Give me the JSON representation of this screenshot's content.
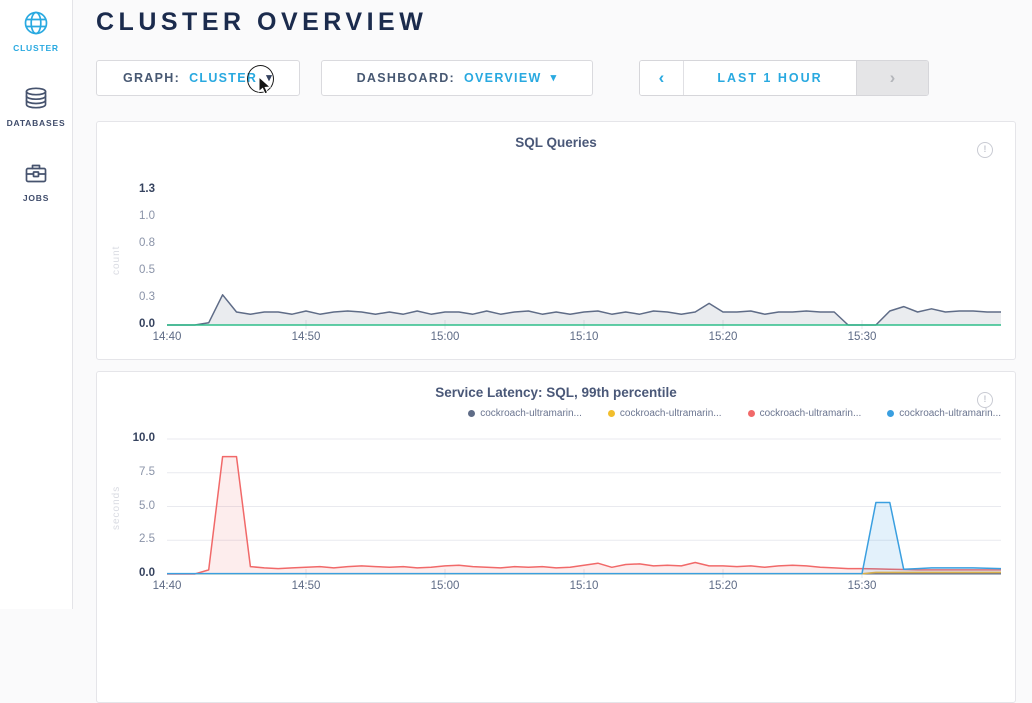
{
  "header": {
    "title": "CLUSTER OVERVIEW"
  },
  "sidebar": {
    "items": [
      {
        "label": "CLUSTER",
        "icon": "globe-icon",
        "active": true
      },
      {
        "label": "DATABASES",
        "icon": "database-icon",
        "active": false
      },
      {
        "label": "JOBS",
        "icon": "briefcase-icon",
        "active": false
      }
    ]
  },
  "toolbar": {
    "graph": {
      "label": "GRAPH:",
      "value": "CLUSTER"
    },
    "dashboard": {
      "label": "DASHBOARD:",
      "value": "OVERVIEW"
    },
    "time_range": {
      "prev": "‹",
      "label": "LAST 1 HOUR",
      "next": "›"
    }
  },
  "icons": {
    "caret_down": "▾"
  },
  "colors": {
    "accent": "#29a9e0",
    "navy": "#1b2b4d",
    "slate": "#475872",
    "series_slate": "#5f6c87",
    "series_green": "#2ebd8a",
    "series_yellow": "#f2be2c",
    "series_red": "#f16969",
    "series_blue": "#3a9fe0"
  },
  "chart_data": [
    {
      "type": "area",
      "title": "SQL Queries",
      "info_glyph": "!",
      "unit": "count",
      "ylabel": "count",
      "y_max": 1.25,
      "x_max_minutes": 60,
      "grid": false,
      "legend": false,
      "yticks": [
        {
          "label": "0.0",
          "value": 0,
          "strong": true
        },
        {
          "label": "0.3",
          "value": 0.25,
          "strong": false
        },
        {
          "label": "0.5",
          "value": 0.5,
          "strong": false
        },
        {
          "label": "0.8",
          "value": 0.75,
          "strong": false
        },
        {
          "label": "1.0",
          "value": 1.0,
          "strong": false
        },
        {
          "label": "1.3",
          "value": 1.25,
          "strong": true
        }
      ],
      "xticks": [
        {
          "label": "14:40",
          "minute": 0
        },
        {
          "label": "14:50",
          "minute": 10
        },
        {
          "label": "15:00",
          "minute": 20
        },
        {
          "label": "15:10",
          "minute": 30
        },
        {
          "label": "15:20",
          "minute": 40
        },
        {
          "label": "15:30",
          "minute": 50
        }
      ],
      "series": [
        {
          "legend_label": "",
          "color": "#5f6c87",
          "fill": "rgba(95,108,135,0.13)",
          "values": [
            0,
            0,
            0,
            0.02,
            0.28,
            0.12,
            0.1,
            0.12,
            0.12,
            0.1,
            0.13,
            0.1,
            0.12,
            0.13,
            0.12,
            0.1,
            0.12,
            0.1,
            0.13,
            0.1,
            0.12,
            0.12,
            0.1,
            0.13,
            0.1,
            0.12,
            0.13,
            0.1,
            0.12,
            0.1,
            0.12,
            0.13,
            0.1,
            0.12,
            0.1,
            0.13,
            0.12,
            0.1,
            0.12,
            0.2,
            0.12,
            0.12,
            0.13,
            0.1,
            0.12,
            0.12,
            0.13,
            0.12,
            0.12,
            0,
            0,
            0,
            0.13,
            0.17,
            0.12,
            0.15,
            0.12,
            0.13,
            0.13,
            0.12,
            0.12
          ]
        },
        {
          "legend_label": "",
          "color": "#2ebd8a",
          "fill": "none",
          "values": [
            0,
            0,
            0,
            0,
            0,
            0,
            0,
            0,
            0,
            0,
            0,
            0,
            0,
            0,
            0,
            0,
            0,
            0,
            0,
            0,
            0,
            0,
            0,
            0,
            0,
            0,
            0,
            0,
            0,
            0,
            0,
            0,
            0,
            0,
            0,
            0,
            0,
            0,
            0,
            0,
            0,
            0,
            0,
            0,
            0,
            0,
            0,
            0,
            0,
            0,
            0,
            0,
            0,
            0,
            0,
            0,
            0,
            0,
            0,
            0,
            0
          ]
        }
      ]
    },
    {
      "type": "area",
      "title": "Service Latency: SQL, 99th percentile",
      "info_glyph": "!",
      "unit": "seconds",
      "ylabel": "seconds",
      "y_max": 10,
      "x_max_minutes": 60,
      "grid": true,
      "legend": true,
      "yticks": [
        {
          "label": "0.0",
          "value": 0,
          "strong": true
        },
        {
          "label": "2.5",
          "value": 2.5,
          "strong": false
        },
        {
          "label": "5.0",
          "value": 5,
          "strong": false
        },
        {
          "label": "7.5",
          "value": 7.5,
          "strong": false
        },
        {
          "label": "10.0",
          "value": 10,
          "strong": true
        }
      ],
      "xticks": [
        {
          "label": "14:40",
          "minute": 0
        },
        {
          "label": "14:50",
          "minute": 10
        },
        {
          "label": "15:00",
          "minute": 20
        },
        {
          "label": "15:10",
          "minute": 30
        },
        {
          "label": "15:20",
          "minute": 40
        },
        {
          "label": "15:30",
          "minute": 50
        }
      ],
      "series": [
        {
          "legend_label": "cockroach-ultramarin...",
          "color": "#5f6c87",
          "fill": "rgba(95,108,135,0.10)",
          "values": [
            0.02,
            0.02,
            0.02,
            0.02,
            0.02,
            0.02,
            0.02,
            0.02,
            0.02,
            0.02,
            0.02,
            0.02,
            0.02,
            0.02,
            0.02,
            0.02,
            0.02,
            0.02,
            0.02,
            0.02,
            0.02,
            0.02,
            0.02,
            0.02,
            0.02,
            0.02,
            0.02,
            0.02,
            0.02,
            0.02,
            0.02,
            0.02,
            0.02,
            0.02,
            0.02,
            0.02,
            0.02,
            0.02,
            0.02,
            0.02,
            0.02,
            0.02,
            0.02,
            0.02,
            0.02,
            0.02,
            0.02,
            0.02,
            0.02,
            0.02,
            0.02,
            0.02,
            0.02,
            0.02,
            0.02,
            0.02,
            0.02,
            0.02,
            0.02,
            0.02,
            0.02
          ]
        },
        {
          "legend_label": "cockroach-ultramarin...",
          "color": "#f2be2c",
          "fill": "rgba(242,190,44,0.12)",
          "values": [
            0.02,
            0.02,
            0.02,
            0.02,
            0.02,
            0.02,
            0.02,
            0.02,
            0.02,
            0.02,
            0.02,
            0.02,
            0.02,
            0.02,
            0.02,
            0.02,
            0.02,
            0.02,
            0.02,
            0.02,
            0.02,
            0.02,
            0.02,
            0.02,
            0.02,
            0.02,
            0.02,
            0.02,
            0.02,
            0.02,
            0.02,
            0.02,
            0.02,
            0.02,
            0.02,
            0.02,
            0.02,
            0.02,
            0.02,
            0.02,
            0.02,
            0.02,
            0.02,
            0.02,
            0.02,
            0.02,
            0.02,
            0.02,
            0.02,
            0.02,
            0.02,
            0.12,
            0.12,
            0.12,
            0.12,
            0.12,
            0.12,
            0.12,
            0.12,
            0.12,
            0.12
          ]
        },
        {
          "legend_label": "cockroach-ultramarin...",
          "color": "#f16969",
          "fill": "rgba(241,105,105,0.12)",
          "values": [
            0,
            0,
            0,
            0.3,
            8.7,
            8.7,
            0.55,
            0.45,
            0.4,
            0.45,
            0.5,
            0.55,
            0.45,
            0.55,
            0.6,
            0.55,
            0.5,
            0.55,
            0.45,
            0.5,
            0.6,
            0.65,
            0.55,
            0.5,
            0.45,
            0.55,
            0.5,
            0.55,
            0.45,
            0.5,
            0.65,
            0.8,
            0.5,
            0.7,
            0.75,
            0.6,
            0.65,
            0.6,
            0.85,
            0.6,
            0.6,
            0.55,
            0.6,
            0.5,
            0.6,
            0.65,
            0.6,
            0.5,
            0.45,
            0.4,
            0.4,
            0.38,
            0.35,
            0.33,
            0.3,
            0.3,
            0.3,
            0.3,
            0.3,
            0.3,
            0.3
          ]
        },
        {
          "legend_label": "cockroach-ultramarin...",
          "color": "#3a9fe0",
          "fill": "rgba(58,159,224,0.14)",
          "values": [
            0.03,
            0.03,
            0.03,
            0.03,
            0.03,
            0.03,
            0.03,
            0.03,
            0.03,
            0.03,
            0.03,
            0.03,
            0.03,
            0.03,
            0.03,
            0.03,
            0.03,
            0.03,
            0.03,
            0.03,
            0.03,
            0.03,
            0.03,
            0.03,
            0.03,
            0.03,
            0.03,
            0.03,
            0.03,
            0.03,
            0.03,
            0.03,
            0.03,
            0.03,
            0.03,
            0.03,
            0.03,
            0.03,
            0.03,
            0.03,
            0.03,
            0.03,
            0.03,
            0.03,
            0.03,
            0.03,
            0.03,
            0.03,
            0.03,
            0.03,
            0.03,
            5.3,
            5.3,
            0.35,
            0.4,
            0.45,
            0.45,
            0.45,
            0.45,
            0.42,
            0.4
          ]
        }
      ]
    }
  ]
}
